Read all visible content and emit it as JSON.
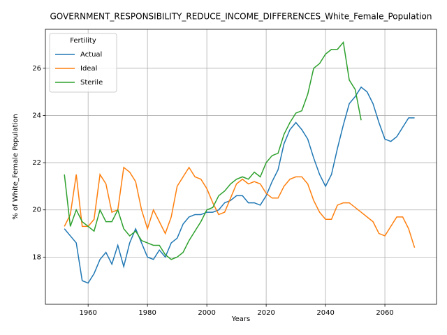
{
  "chart_data": {
    "type": "line",
    "title": "GOVERNMENT_RESPONSIBILITY_REDUCE_INCOME_DIFFERENCES_White_Female_Population",
    "xlabel": "Years",
    "ylabel": "% of White_Female Population",
    "x": [
      1952,
      1954,
      1956,
      1958,
      1960,
      1962,
      1964,
      1966,
      1968,
      1970,
      1972,
      1974,
      1976,
      1978,
      1980,
      1982,
      1984,
      1986,
      1988,
      1990,
      1992,
      1994,
      1996,
      1998,
      2000,
      2002,
      2004,
      2006,
      2008,
      2010,
      2012,
      2014,
      2016,
      2018,
      2020,
      2022,
      2024,
      2026,
      2028,
      2030,
      2032,
      2034,
      2036,
      2038,
      2040,
      2042,
      2044,
      2046,
      2048,
      2050,
      2052,
      2054,
      2056,
      2058,
      2060,
      2062,
      2064,
      2066,
      2068,
      2070
    ],
    "series": [
      {
        "name": "Actual",
        "color": "#1f77b4",
        "values": [
          19.2,
          18.9,
          18.6,
          17.0,
          16.9,
          17.3,
          17.9,
          18.2,
          17.7,
          18.5,
          17.6,
          18.6,
          19.2,
          18.6,
          18.0,
          17.9,
          18.3,
          18.0,
          18.6,
          18.8,
          19.4,
          19.7,
          19.8,
          19.8,
          19.9,
          19.9,
          20.0,
          20.3,
          20.4,
          20.6,
          20.6,
          20.3,
          20.3,
          20.2,
          20.6,
          21.2,
          21.7,
          22.8,
          23.4,
          23.7,
          23.4,
          23.0,
          22.2,
          21.5,
          21.0,
          21.5,
          22.6,
          23.6,
          24.5,
          24.8,
          25.2,
          25.0,
          24.5,
          23.7,
          23.0,
          22.9,
          23.1,
          23.5,
          23.9,
          23.9
        ]
      },
      {
        "name": "Ideal",
        "color": "#ff7f0e",
        "values": [
          19.3,
          19.8,
          21.5,
          19.3,
          19.3,
          19.6,
          21.5,
          21.1,
          19.9,
          20.0,
          21.8,
          21.6,
          21.2,
          20.0,
          19.2,
          20.0,
          19.5,
          19.0,
          19.7,
          21.0,
          21.4,
          21.8,
          21.4,
          21.3,
          20.9,
          20.3,
          19.8,
          19.9,
          20.5,
          21.1,
          21.3,
          21.1,
          21.2,
          21.1,
          20.7,
          20.5,
          20.5,
          21.0,
          21.3,
          21.4,
          21.4,
          21.1,
          20.4,
          19.9,
          19.6,
          19.6,
          20.2,
          20.3,
          20.3,
          20.1,
          19.9,
          19.7,
          19.5,
          19.0,
          18.9,
          19.3,
          19.7,
          19.7,
          19.2,
          18.4
        ]
      },
      {
        "name": "Sterile",
        "color": "#2ca02c",
        "values": [
          21.5,
          19.3,
          20.0,
          19.5,
          19.3,
          19.1,
          20.0,
          19.5,
          19.5,
          20.0,
          19.2,
          18.9,
          19.1,
          18.7,
          18.6,
          18.5,
          18.5,
          18.1,
          17.9,
          18.0,
          18.2,
          18.7,
          19.1,
          19.5,
          20.0,
          20.1,
          20.6,
          20.8,
          21.1,
          21.3,
          21.4,
          21.3,
          21.6,
          21.4,
          22.0,
          22.3,
          22.4,
          23.2,
          23.7,
          24.1,
          24.2,
          24.9,
          26.0,
          26.2,
          26.6,
          26.8,
          26.8,
          27.1,
          25.5,
          25.1,
          23.8,
          null,
          null,
          null,
          null,
          null,
          null,
          null,
          null,
          null
        ]
      }
    ],
    "legend_title": "Fertility",
    "legend": "upper left",
    "grid": true,
    "xlim": [
      1945.6,
      2077.4
    ],
    "xticks": [
      1960,
      1980,
      2000,
      2020,
      2040,
      2060
    ],
    "ylim": [
      16.0,
      27.65
    ],
    "yticks": [
      18,
      20,
      22,
      24,
      26
    ]
  }
}
